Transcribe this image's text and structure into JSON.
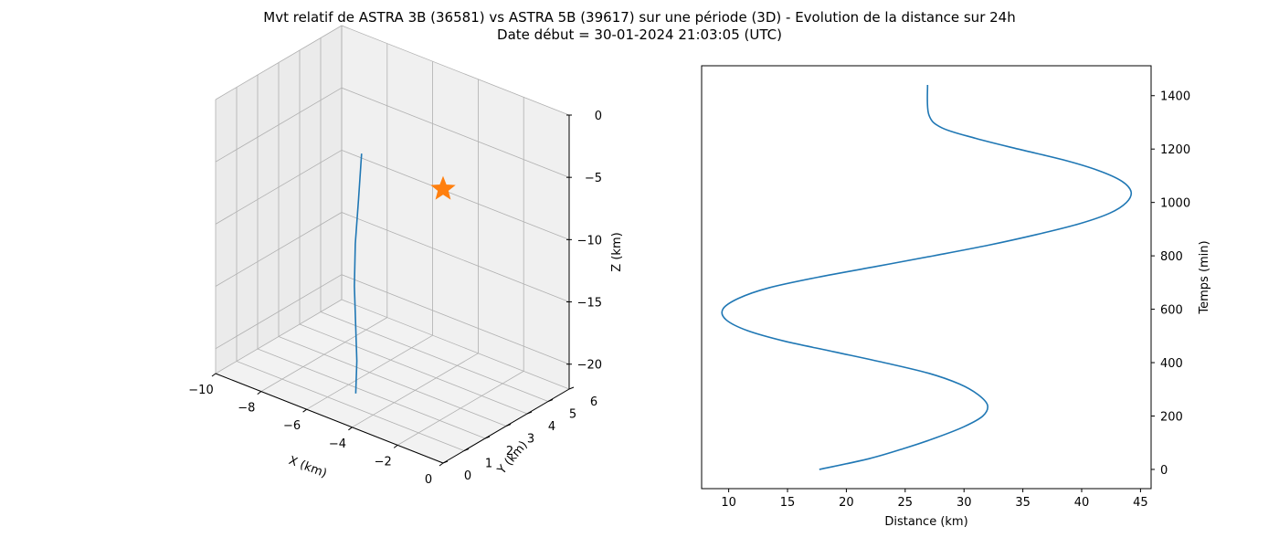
{
  "title": {
    "line1": "Mvt relatif de ASTRA 3B (36581) vs ASTRA 5B (39617) sur une période (3D) - Evolution de la distance sur 24h",
    "line2": "Date début = 30-01-2024 21:03:05 (UTC)"
  },
  "colors": {
    "series": "#1f77b4",
    "marker": "#ff7f0e",
    "pane": "#f2f2f2",
    "grid": "#b0b0b0"
  },
  "chart_data": [
    {
      "type": "line",
      "projection": "3d",
      "xlabel": "X (km)",
      "ylabel": "Y (km)",
      "zlabel": "Z (km)",
      "xlim": [
        -10,
        0
      ],
      "ylim": [
        0,
        6
      ],
      "zlim": [
        -22,
        0
      ],
      "xticks": [
        "−10",
        "−8",
        "−6",
        "−4",
        "−2",
        "0"
      ],
      "yticks": [
        "0",
        "1",
        "2",
        "3",
        "4",
        "5",
        "6"
      ],
      "zticks": [
        "0",
        "−5",
        "−10",
        "−15",
        "−20"
      ],
      "grid": true,
      "series": [
        {
          "x": [
            -8.2,
            -7.6,
            -7.0,
            -6.3,
            -5.6,
            -4.9,
            -4.3
          ],
          "y": [
            5.0,
            4.2,
            3.4,
            2.6,
            1.9,
            1.2,
            0.5
          ],
          "z": [
            -8.0,
            -10.5,
            -12.8,
            -14.9,
            -16.8,
            -18.5,
            -20.0
          ]
        }
      ],
      "marker": {
        "symbol": "star",
        "x": 0,
        "y": 0,
        "z": 0
      }
    },
    {
      "type": "line",
      "xlabel": "Distance (km)",
      "ylabel": "Temps (min)",
      "xlim": [
        7.7,
        45.9
      ],
      "ylim": [
        -72,
        1512
      ],
      "xticks": [
        "10",
        "15",
        "20",
        "25",
        "30",
        "35",
        "40",
        "45"
      ],
      "yticks": [
        "0",
        "200",
        "400",
        "600",
        "800",
        "1000",
        "1200",
        "1400"
      ],
      "yaxis_position": "right",
      "grid": false,
      "series": [
        {
          "x": [
            17.7,
            21.9,
            25.0,
            27.7,
            30.0,
            31.6,
            32.0,
            31.2,
            29.6,
            27.0,
            23.2,
            19.0,
            14.8,
            11.6,
            9.8,
            9.5,
            10.8,
            13.4,
            17.6,
            22.5,
            27.4,
            32.1,
            36.2,
            39.8,
            42.4,
            43.8,
            44.2,
            43.4,
            41.4,
            38.4,
            34.6,
            31.0,
            28.1,
            27.0,
            26.9
          ],
          "y": [
            0,
            40,
            80,
            120,
            160,
            200,
            240,
            280,
            320,
            360,
            400,
            440,
            480,
            520,
            560,
            600,
            640,
            680,
            720,
            760,
            800,
            840,
            880,
            920,
            960,
            1000,
            1040,
            1080,
            1120,
            1160,
            1200,
            1240,
            1280,
            1330,
            1440
          ]
        }
      ]
    }
  ]
}
